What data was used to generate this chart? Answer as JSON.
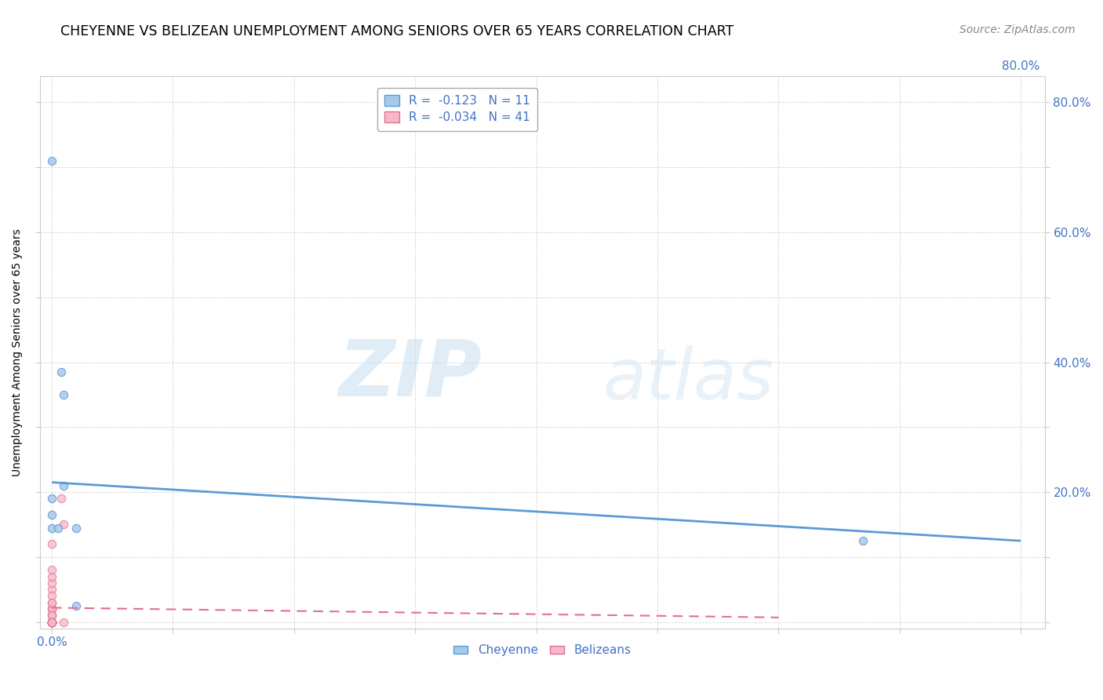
{
  "title": "CHEYENNE VS BELIZEAN UNEMPLOYMENT AMONG SENIORS OVER 65 YEARS CORRELATION CHART",
  "source": "Source: ZipAtlas.com",
  "xlabel": "",
  "ylabel": "Unemployment Among Seniors over 65 years",
  "xlim": [
    -0.01,
    0.82
  ],
  "ylim": [
    -0.01,
    0.84
  ],
  "xticks": [
    0.0,
    0.1,
    0.2,
    0.3,
    0.4,
    0.5,
    0.6,
    0.7,
    0.8
  ],
  "xticklabels_left": [
    "0.0%",
    "",
    "",
    "",
    "",
    "",
    "",
    "",
    ""
  ],
  "xticklabels_right": [
    "",
    "",
    "",
    "",
    "",
    "",
    "",
    "",
    "80.0%"
  ],
  "yticks": [
    0.0,
    0.1,
    0.2,
    0.3,
    0.4,
    0.5,
    0.6,
    0.7,
    0.8
  ],
  "ylabels_left": [
    "",
    "",
    "",
    "",
    "",
    "",
    "",
    "",
    ""
  ],
  "ylabels_right": [
    "",
    "",
    "20.0%",
    "",
    "40.0%",
    "",
    "60.0%",
    "",
    "80.0%"
  ],
  "cheyenne_color": "#a8c8e8",
  "cheyenne_edge_color": "#5b9bd5",
  "belizean_color": "#f5b8c8",
  "belizean_edge_color": "#e07090",
  "cheyenne_R": "-0.123",
  "cheyenne_N": "11",
  "belizean_R": "-0.034",
  "belizean_N": "41",
  "cheyenne_x": [
    0.0,
    0.0,
    0.0,
    0.005,
    0.008,
    0.01,
    0.01,
    0.02,
    0.02,
    0.67,
    0.0
  ],
  "cheyenne_y": [
    0.19,
    0.145,
    0.165,
    0.145,
    0.385,
    0.35,
    0.21,
    0.145,
    0.025,
    0.125,
    0.71
  ],
  "belizean_x": [
    0.0,
    0.0,
    0.0,
    0.0,
    0.0,
    0.0,
    0.0,
    0.0,
    0.0,
    0.0,
    0.0,
    0.0,
    0.0,
    0.0,
    0.0,
    0.0,
    0.0,
    0.0,
    0.0,
    0.0,
    0.0,
    0.0,
    0.0,
    0.0,
    0.0,
    0.0,
    0.0,
    0.0,
    0.0,
    0.0,
    0.0,
    0.0,
    0.0,
    0.0,
    0.008,
    0.01,
    0.01,
    0.0,
    0.0,
    0.0,
    0.0
  ],
  "belizean_y": [
    0.0,
    0.0,
    0.0,
    0.02,
    0.0,
    0.01,
    0.02,
    0.0,
    0.03,
    0.05,
    0.0,
    0.04,
    0.06,
    0.07,
    0.0,
    0.02,
    0.0,
    0.08,
    0.0,
    0.0,
    0.0,
    0.0,
    0.12,
    0.03,
    0.0,
    0.01,
    0.0,
    0.0,
    0.0,
    0.0,
    0.0,
    0.0,
    0.0,
    0.0,
    0.19,
    0.15,
    0.0,
    0.0,
    0.01,
    0.0,
    0.0
  ],
  "cheyenne_trend_x": [
    0.0,
    0.8
  ],
  "cheyenne_trend_y": [
    0.215,
    0.125
  ],
  "belizean_trend_x": [
    0.0,
    0.6
  ],
  "belizean_trend_y": [
    0.022,
    0.007
  ],
  "watermark_zip": "ZIP",
  "watermark_atlas": "atlas",
  "background_color": "#ffffff",
  "grid_color": "#cccccc",
  "title_fontsize": 12.5,
  "axis_label_fontsize": 10,
  "tick_fontsize": 11,
  "source_fontsize": 10,
  "legend_fontsize": 11,
  "marker_size": 55,
  "right_ytick_color": "#4472C4",
  "tick_label_color": "#4472C4"
}
